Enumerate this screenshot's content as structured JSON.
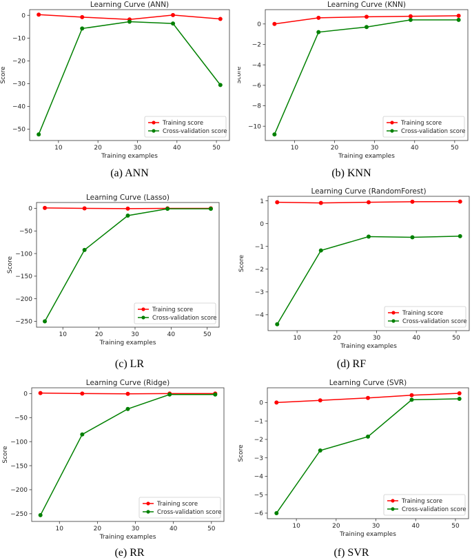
{
  "chart_data": [
    {
      "type": "line",
      "title": "Learning Curve (ANN)",
      "caption": "(a) ANN",
      "xlabel": "Training examples",
      "ylabel": "Score",
      "x": [
        5,
        16,
        28,
        39,
        51
      ],
      "xlim": [
        2.7,
        53.3
      ],
      "ylim": [
        -55.0,
        2.5
      ],
      "xticks": [
        "10",
        "20",
        "30",
        "40",
        "50"
      ],
      "yticks": [
        "0",
        "−10",
        "−20",
        "−30",
        "−40",
        "−50"
      ],
      "legend_position": "lower-right",
      "series": [
        {
          "name": "Training score",
          "color": "#ff0000",
          "values": [
            0.3,
            -0.8,
            -1.8,
            0.1,
            -1.6
          ]
        },
        {
          "name": "Cross-validation score",
          "color": "#008000",
          "values": [
            -52.3,
            -5.8,
            -2.8,
            -3.6,
            -30.6
          ]
        }
      ]
    },
    {
      "type": "line",
      "title": "Learning Curve (KNN)",
      "caption": "(b) KNN",
      "xlabel": "Training examples",
      "ylabel": "Score",
      "x": [
        5,
        16,
        28,
        39,
        51
      ],
      "xlim": [
        2.7,
        53.3
      ],
      "ylim": [
        -11.4,
        1.4
      ],
      "xticks": [
        "10",
        "20",
        "30",
        "40",
        "50"
      ],
      "yticks": [
        "0",
        "−2",
        "−4",
        "−6",
        "−8",
        "−10"
      ],
      "legend_position": "lower-right",
      "series": [
        {
          "name": "Training score",
          "color": "#ff0000",
          "values": [
            0.0,
            0.6,
            0.7,
            0.75,
            0.8
          ]
        },
        {
          "name": "Cross-validation score",
          "color": "#008000",
          "values": [
            -10.8,
            -0.8,
            -0.3,
            0.4,
            0.4
          ]
        }
      ]
    },
    {
      "type": "line",
      "title": "Learning Curve (Lasso)",
      "caption": "(c) LR",
      "xlabel": "Training examples",
      "ylabel": "Score",
      "x": [
        5,
        16,
        28,
        39,
        51
      ],
      "xlim": [
        2.7,
        53.3
      ],
      "ylim": [
        -263,
        13
      ],
      "xticks": [
        "10",
        "20",
        "30",
        "40",
        "50"
      ],
      "yticks": [
        "0",
        "−50",
        "−100",
        "−150",
        "−200",
        "−250"
      ],
      "legend_position": "lower-right",
      "series": [
        {
          "name": "Training score",
          "color": "#ff0000",
          "values": [
            1,
            0,
            -0.5,
            0,
            0
          ]
        },
        {
          "name": "Cross-validation score",
          "color": "#008000",
          "values": [
            -250,
            -92,
            -16,
            -1,
            -1
          ]
        }
      ]
    },
    {
      "type": "line",
      "title": "Learning Curve (RandomForest)",
      "caption": "(d) RF",
      "xlabel": "Training examples",
      "ylabel": "Score",
      "x": [
        5,
        16,
        28,
        39,
        51
      ],
      "xlim": [
        2.7,
        53.3
      ],
      "ylim": [
        -4.7,
        1.2
      ],
      "xticks": [
        "10",
        "20",
        "30",
        "40",
        "50"
      ],
      "yticks": [
        "1",
        "0",
        "−1",
        "−2",
        "−3",
        "−4"
      ],
      "legend_position": "lower-right",
      "series": [
        {
          "name": "Training score",
          "color": "#ff0000",
          "values": [
            0.94,
            0.91,
            0.94,
            0.96,
            0.97
          ]
        },
        {
          "name": "Cross-validation score",
          "color": "#008000",
          "values": [
            -4.42,
            -1.18,
            -0.57,
            -0.6,
            -0.55
          ]
        }
      ]
    },
    {
      "type": "line",
      "title": "Learning Curve (Ridge)",
      "caption": "(e) RR",
      "xlabel": "Training examples",
      "ylabel": "Score",
      "x": [
        5,
        16,
        28,
        39,
        51
      ],
      "xlim": [
        2.7,
        53.3
      ],
      "ylim": [
        -266,
        12
      ],
      "xticks": [
        "10",
        "20",
        "30",
        "40",
        "50"
      ],
      "yticks": [
        "0",
        "−50",
        "−100",
        "−150",
        "−200",
        "−250"
      ],
      "legend_position": "lower-right",
      "series": [
        {
          "name": "Training score",
          "color": "#ff0000",
          "values": [
            1,
            0,
            -0.5,
            0,
            0
          ]
        },
        {
          "name": "Cross-validation score",
          "color": "#008000",
          "values": [
            -253,
            -85,
            -32,
            -2,
            -2
          ]
        }
      ]
    },
    {
      "type": "line",
      "title": "Learning Curve (SVR)",
      "caption": "(f) SVR",
      "xlabel": "Training examples",
      "ylabel": "Score",
      "x": [
        5,
        16,
        28,
        39,
        51
      ],
      "xlim": [
        2.7,
        53.3
      ],
      "ylim": [
        -6.3,
        0.8
      ],
      "xticks": [
        "10",
        "20",
        "30",
        "40",
        "50"
      ],
      "yticks": [
        "0",
        "−1",
        "−2",
        "−3",
        "−4",
        "−5",
        "−6"
      ],
      "legend_position": "lower-right",
      "series": [
        {
          "name": "Training score",
          "color": "#ff0000",
          "values": [
            0.0,
            0.12,
            0.25,
            0.4,
            0.5
          ]
        },
        {
          "name": "Cross-validation score",
          "color": "#008000",
          "values": [
            -6.0,
            -2.6,
            -1.85,
            0.15,
            0.2
          ]
        }
      ]
    }
  ]
}
